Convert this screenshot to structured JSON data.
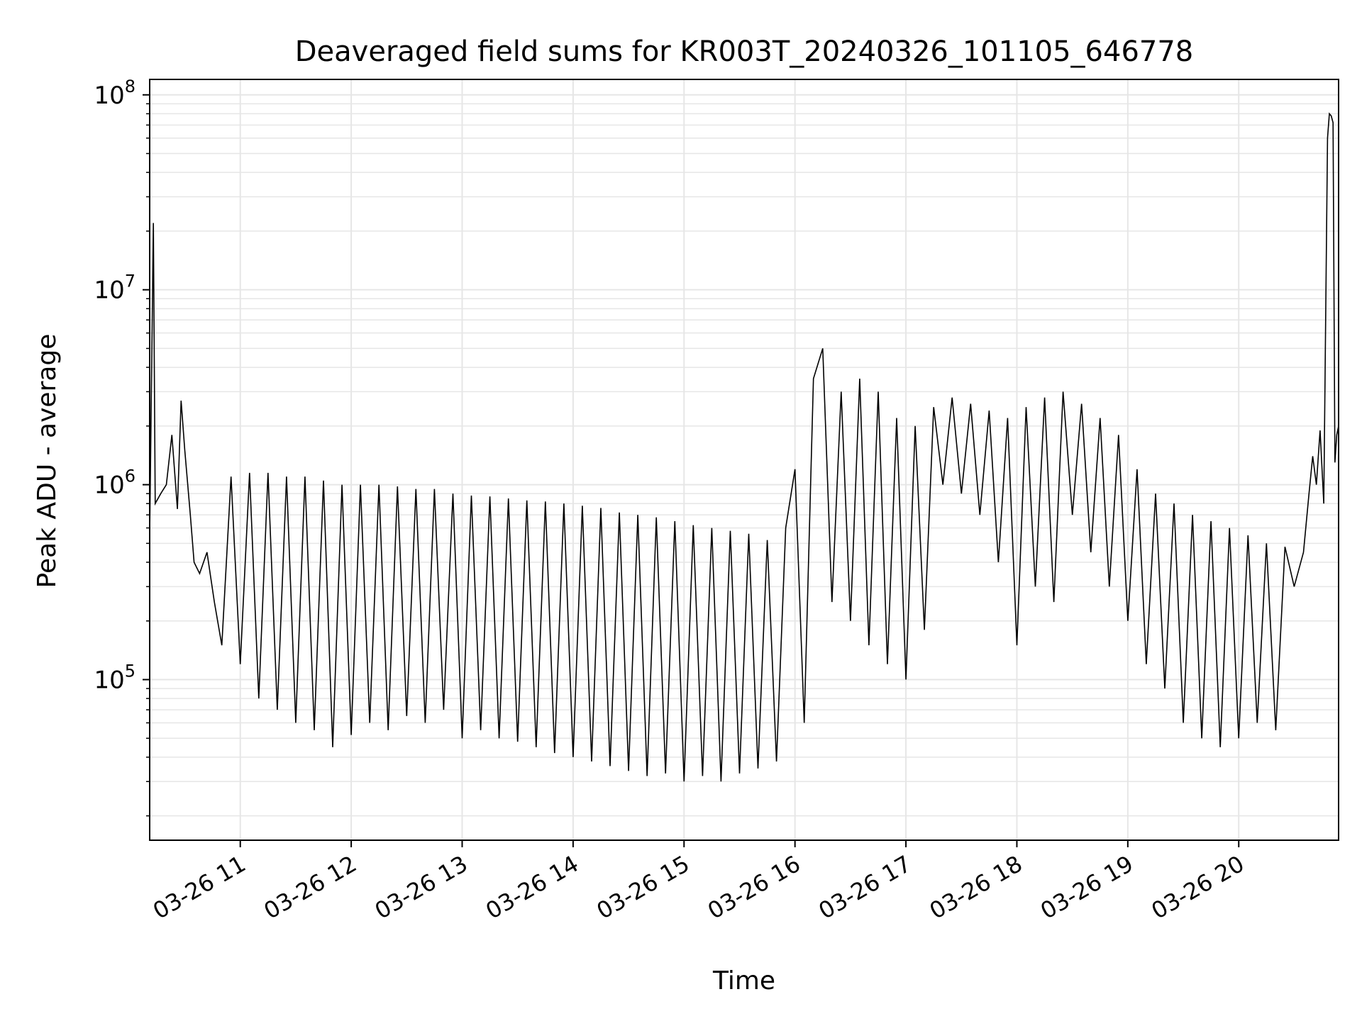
{
  "chart_data": {
    "type": "line",
    "title": "Deaveraged field sums for KR003T_20240326_101105_646778",
    "xlabel": "Time",
    "ylabel": "Peak ADU - average",
    "yscale": "log",
    "ylim": [
      15000,
      120000000
    ],
    "xlim": [
      "2024-03-26 10:11",
      "2024-03-26 20:54"
    ],
    "grid": true,
    "line_color": "#000000",
    "grid_color": "#e6e6e6",
    "x_ticks": [
      {
        "value": "2024-03-26 11:00",
        "label": "03-26 11"
      },
      {
        "value": "2024-03-26 12:00",
        "label": "03-26 12"
      },
      {
        "value": "2024-03-26 13:00",
        "label": "03-26 13"
      },
      {
        "value": "2024-03-26 14:00",
        "label": "03-26 14"
      },
      {
        "value": "2024-03-26 15:00",
        "label": "03-26 15"
      },
      {
        "value": "2024-03-26 16:00",
        "label": "03-26 16"
      },
      {
        "value": "2024-03-26 17:00",
        "label": "03-26 17"
      },
      {
        "value": "2024-03-26 18:00",
        "label": "03-26 18"
      },
      {
        "value": "2024-03-26 19:00",
        "label": "03-26 19"
      },
      {
        "value": "2024-03-26 20:00",
        "label": "03-26 20"
      }
    ],
    "y_ticks": [
      {
        "value": 100000,
        "base": "10",
        "exp": "5"
      },
      {
        "value": 1000000,
        "base": "10",
        "exp": "6"
      },
      {
        "value": 10000000,
        "base": "10",
        "exp": "7"
      },
      {
        "value": 100000000,
        "base": "10",
        "exp": "8"
      }
    ],
    "series": [
      {
        "x": [
          "2024-03-26 10:11",
          "2024-03-26 10:13",
          "2024-03-26 10:14",
          "2024-03-26 10:17",
          "2024-03-26 10:20",
          "2024-03-26 10:23",
          "2024-03-26 10:26",
          "2024-03-26 10:28",
          "2024-03-26 10:30",
          "2024-03-26 10:33",
          "2024-03-26 10:35",
          "2024-03-26 10:38",
          "2024-03-26 10:42",
          "2024-03-26 10:46",
          "2024-03-26 10:50",
          "2024-03-26 10:55",
          "2024-03-26 11:00",
          "2024-03-26 11:05",
          "2024-03-26 11:10",
          "2024-03-26 11:15",
          "2024-03-26 11:20",
          "2024-03-26 11:25",
          "2024-03-26 11:30",
          "2024-03-26 11:35",
          "2024-03-26 11:40",
          "2024-03-26 11:45",
          "2024-03-26 11:50",
          "2024-03-26 11:55",
          "2024-03-26 12:00",
          "2024-03-26 12:05",
          "2024-03-26 12:10",
          "2024-03-26 12:15",
          "2024-03-26 12:20",
          "2024-03-26 12:25",
          "2024-03-26 12:30",
          "2024-03-26 12:35",
          "2024-03-26 12:40",
          "2024-03-26 12:45",
          "2024-03-26 12:50",
          "2024-03-26 12:55",
          "2024-03-26 13:00",
          "2024-03-26 13:05",
          "2024-03-26 13:10",
          "2024-03-26 13:15",
          "2024-03-26 13:20",
          "2024-03-26 13:25",
          "2024-03-26 13:30",
          "2024-03-26 13:35",
          "2024-03-26 13:40",
          "2024-03-26 13:45",
          "2024-03-26 13:50",
          "2024-03-26 13:55",
          "2024-03-26 14:00",
          "2024-03-26 14:05",
          "2024-03-26 14:10",
          "2024-03-26 14:15",
          "2024-03-26 14:20",
          "2024-03-26 14:25",
          "2024-03-26 14:30",
          "2024-03-26 14:35",
          "2024-03-26 14:40",
          "2024-03-26 14:45",
          "2024-03-26 14:50",
          "2024-03-26 14:55",
          "2024-03-26 15:00",
          "2024-03-26 15:05",
          "2024-03-26 15:10",
          "2024-03-26 15:15",
          "2024-03-26 15:20",
          "2024-03-26 15:25",
          "2024-03-26 15:30",
          "2024-03-26 15:35",
          "2024-03-26 15:40",
          "2024-03-26 15:45",
          "2024-03-26 15:50",
          "2024-03-26 15:55",
          "2024-03-26 16:00",
          "2024-03-26 16:05",
          "2024-03-26 16:10",
          "2024-03-26 16:15",
          "2024-03-26 16:20",
          "2024-03-26 16:25",
          "2024-03-26 16:30",
          "2024-03-26 16:35",
          "2024-03-26 16:40",
          "2024-03-26 16:45",
          "2024-03-26 16:50",
          "2024-03-26 16:55",
          "2024-03-26 17:00",
          "2024-03-26 17:05",
          "2024-03-26 17:10",
          "2024-03-26 17:15",
          "2024-03-26 17:20",
          "2024-03-26 17:25",
          "2024-03-26 17:30",
          "2024-03-26 17:35",
          "2024-03-26 17:40",
          "2024-03-26 17:45",
          "2024-03-26 17:50",
          "2024-03-26 17:55",
          "2024-03-26 18:00",
          "2024-03-26 18:05",
          "2024-03-26 18:10",
          "2024-03-26 18:15",
          "2024-03-26 18:20",
          "2024-03-26 18:25",
          "2024-03-26 18:30",
          "2024-03-26 18:35",
          "2024-03-26 18:40",
          "2024-03-26 18:45",
          "2024-03-26 18:50",
          "2024-03-26 18:55",
          "2024-03-26 19:00",
          "2024-03-26 19:05",
          "2024-03-26 19:10",
          "2024-03-26 19:15",
          "2024-03-26 19:20",
          "2024-03-26 19:25",
          "2024-03-26 19:30",
          "2024-03-26 19:35",
          "2024-03-26 19:40",
          "2024-03-26 19:45",
          "2024-03-26 19:50",
          "2024-03-26 19:55",
          "2024-03-26 20:00",
          "2024-03-26 20:05",
          "2024-03-26 20:10",
          "2024-03-26 20:15",
          "2024-03-26 20:20",
          "2024-03-26 20:25",
          "2024-03-26 20:30",
          "2024-03-26 20:35",
          "2024-03-26 20:38",
          "2024-03-26 20:40",
          "2024-03-26 20:42",
          "2024-03-26 20:44",
          "2024-03-26 20:46",
          "2024-03-26 20:48",
          "2024-03-26 20:49",
          "2024-03-26 20:50",
          "2024-03-26 20:51",
          "2024-03-26 20:52",
          "2024-03-26 20:53",
          "2024-03-26 20:54"
        ],
        "y": [
          550000,
          22000000,
          800000,
          900000,
          1000000,
          1800000,
          750000,
          2700000,
          1500000,
          700000,
          400000,
          350000,
          450000,
          250000,
          150000,
          1100000,
          120000,
          1150000,
          80000,
          1150000,
          70000,
          1100000,
          60000,
          1100000,
          55000,
          1050000,
          45000,
          1000000,
          52000,
          1000000,
          60000,
          1000000,
          55000,
          980000,
          65000,
          950000,
          60000,
          950000,
          70000,
          900000,
          50000,
          880000,
          55000,
          870000,
          50000,
          850000,
          48000,
          830000,
          45000,
          820000,
          42000,
          800000,
          40000,
          780000,
          38000,
          760000,
          36000,
          720000,
          34000,
          700000,
          32000,
          680000,
          33000,
          650000,
          30000,
          620000,
          32000,
          600000,
          30000,
          580000,
          33000,
          560000,
          35000,
          520000,
          38000,
          600000,
          1200000,
          60000,
          3500000,
          5000000,
          250000,
          3000000,
          200000,
          3500000,
          150000,
          3000000,
          120000,
          2200000,
          100000,
          2000000,
          180000,
          2500000,
          1000000,
          2800000,
          900000,
          2600000,
          700000,
          2400000,
          400000,
          2200000,
          150000,
          2500000,
          300000,
          2800000,
          250000,
          3000000,
          700000,
          2600000,
          450000,
          2200000,
          300000,
          1800000,
          200000,
          1200000,
          120000,
          900000,
          90000,
          800000,
          60000,
          700000,
          50000,
          650000,
          45000,
          600000,
          50000,
          550000,
          60000,
          500000,
          55000,
          480000,
          300000,
          450000,
          900000,
          1400000,
          1000000,
          1900000,
          800000,
          60000000,
          80000000,
          78000000,
          72000000,
          1300000,
          1800000,
          2000000
        ]
      }
    ]
  }
}
